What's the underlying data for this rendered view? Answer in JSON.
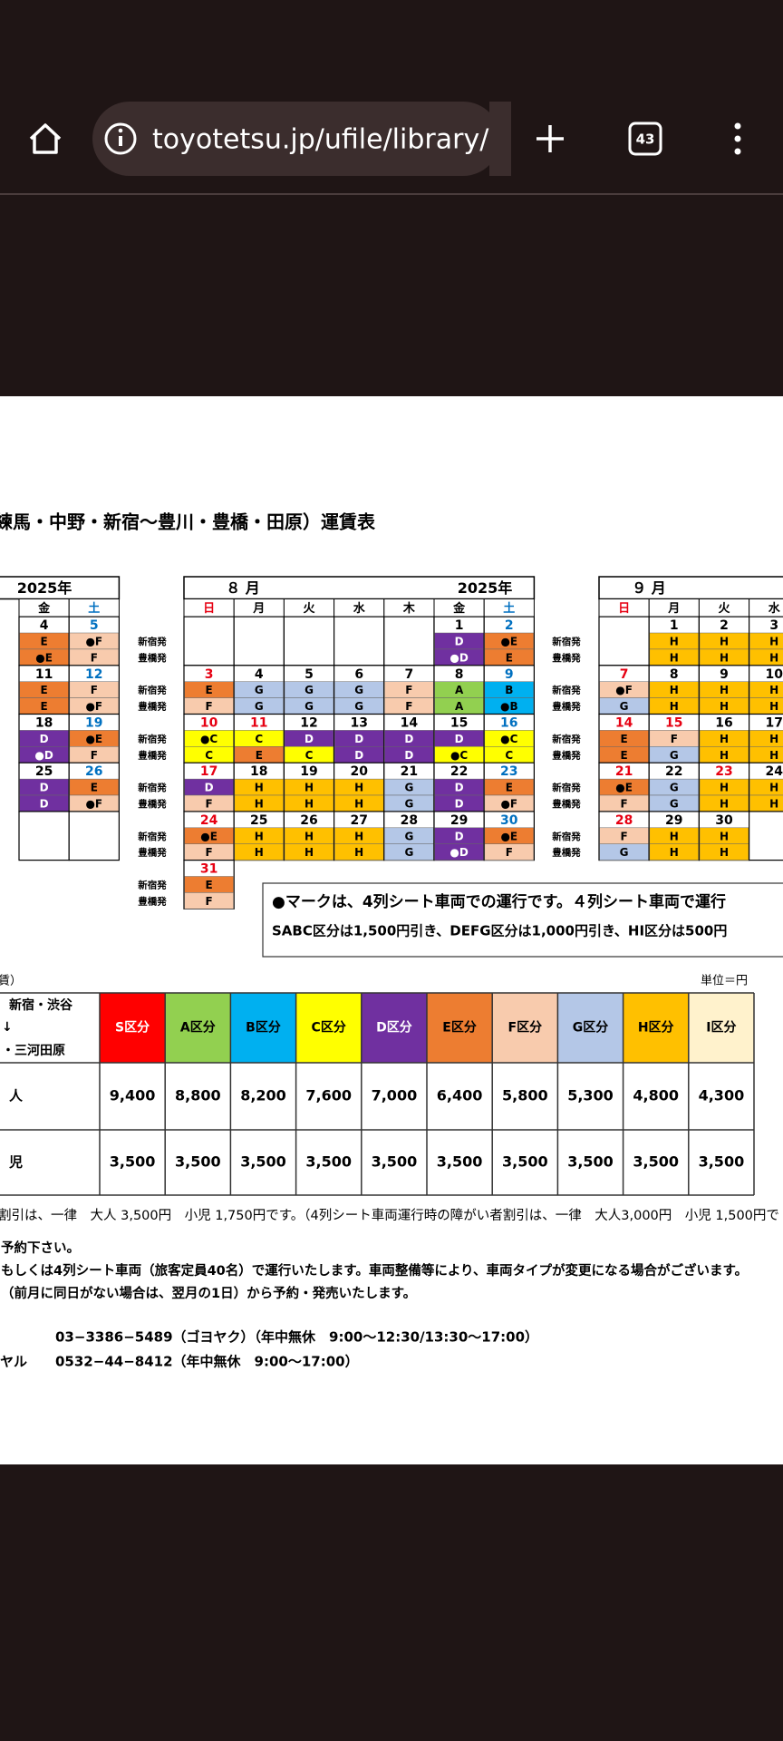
{
  "browser": {
    "url": "toyotetsu.jp/ufile/library/",
    "tab_count": "43"
  },
  "title": "練馬・中野・新宿〜豊川・豊橋・田原）運賃表",
  "row_labels": [
    "新宿発",
    "豊橋発"
  ],
  "calendars": [
    {
      "year": "2025年",
      "columns": [
        {
          "label": "金"
        },
        {
          "label": "土",
          "color": "#0070c0"
        }
      ],
      "weeks": [
        {
          "dates": [
            "4",
            "5"
          ],
          "shinjuku": [
            "E",
            "●F"
          ],
          "toyohashi": [
            "●E",
            "F"
          ]
        },
        {
          "dates": [
            "11",
            "12"
          ],
          "shinjuku": [
            "E",
            "F"
          ],
          "toyohashi": [
            "E",
            "●F"
          ]
        },
        {
          "dates": [
            "18",
            "19"
          ],
          "shinjuku": [
            "D",
            "●E"
          ],
          "toyohashi": [
            "●D",
            "F"
          ]
        },
        {
          "dates": [
            "25",
            "26"
          ],
          "shinjuku": [
            "D",
            "E"
          ],
          "toyohashi": [
            "D",
            "●F"
          ]
        },
        {
          "dates": [
            null,
            null
          ],
          "shinjuku": [
            null,
            null
          ],
          "toyohashi": [
            null,
            null
          ]
        }
      ]
    },
    {
      "month": "８ 月",
      "year": "2025年",
      "columns": [
        {
          "label": "日",
          "color": "#e60012"
        },
        {
          "label": "月"
        },
        {
          "label": "火"
        },
        {
          "label": "水"
        },
        {
          "label": "木"
        },
        {
          "label": "金"
        },
        {
          "label": "土",
          "color": "#0070c0"
        }
      ],
      "weeks": [
        {
          "dates": [
            null,
            null,
            null,
            null,
            null,
            "1",
            "2"
          ],
          "shinjuku": [
            null,
            null,
            null,
            null,
            null,
            "D",
            "●E"
          ],
          "toyohashi": [
            null,
            null,
            null,
            null,
            null,
            "●D",
            "E"
          ]
        },
        {
          "dates": [
            "3",
            "4",
            "5",
            "6",
            "7",
            "8",
            "9"
          ],
          "shinjuku": [
            "E",
            "G",
            "G",
            "G",
            "F",
            "A",
            "B"
          ],
          "toyohashi": [
            "F",
            "G",
            "G",
            "G",
            "F",
            "A",
            "●B"
          ]
        },
        {
          "dates": [
            "10",
            {
              "label": "11",
              "color": "#e60012"
            },
            "12",
            "13",
            "14",
            "15",
            "16"
          ],
          "shinjuku": [
            "●C",
            "C",
            "D",
            "D",
            "D",
            "D",
            "●C"
          ],
          "toyohashi": [
            "C",
            "E",
            "C",
            "D",
            "D",
            "●C",
            "C"
          ]
        },
        {
          "dates": [
            "17",
            "18",
            "19",
            "20",
            "21",
            "22",
            "23"
          ],
          "shinjuku": [
            "D",
            "H",
            "H",
            "H",
            "G",
            "D",
            "E"
          ],
          "toyohashi": [
            "F",
            "H",
            "H",
            "H",
            "G",
            "D",
            "●F"
          ]
        },
        {
          "dates": [
            "24",
            "25",
            "26",
            "27",
            "28",
            "29",
            "30"
          ],
          "shinjuku": [
            "●E",
            "H",
            "H",
            "H",
            "G",
            "D",
            "●E"
          ],
          "toyohashi": [
            "F",
            "H",
            "H",
            "H",
            "G",
            "●D",
            "F"
          ]
        },
        {
          "dates": [
            "31"
          ],
          "shinjuku": [
            "E"
          ],
          "toyohashi": [
            "F"
          ]
        }
      ]
    },
    {
      "month": "９ 月",
      "columns": [
        {
          "label": "日",
          "color": "#e60012"
        },
        {
          "label": "月"
        },
        {
          "label": "火"
        },
        {
          "label": "水"
        }
      ],
      "weeks": [
        {
          "dates": [
            null,
            "1",
            "2",
            "3"
          ],
          "shinjuku": [
            null,
            "H",
            "H",
            "H"
          ],
          "toyohashi": [
            null,
            "H",
            "H",
            "H"
          ]
        },
        {
          "dates": [
            "7",
            "8",
            "9",
            "10"
          ],
          "shinjuku": [
            "●F",
            "H",
            "H",
            "H"
          ],
          "toyohashi": [
            "G",
            "H",
            "H",
            "H"
          ]
        },
        {
          "dates": [
            "14",
            {
              "label": "15",
              "color": "#e60012"
            },
            "16",
            "17"
          ],
          "shinjuku": [
            "E",
            "F",
            "H",
            "H"
          ],
          "toyohashi": [
            "E",
            "G",
            "H",
            "H"
          ]
        },
        {
          "dates": [
            "21",
            "22",
            {
              "label": "23",
              "color": "#e60012"
            },
            "24"
          ],
          "shinjuku": [
            "●E",
            "G",
            "H",
            "H"
          ],
          "toyohashi": [
            "F",
            "G",
            "H",
            "H"
          ]
        },
        {
          "dates": [
            "28",
            "29",
            "30",
            null
          ],
          "shinjuku": [
            "F",
            "H",
            "H",
            null
          ],
          "toyohashi": [
            "G",
            "H",
            "H",
            null
          ]
        }
      ]
    }
  ],
  "note": [
    "●マークは、4列シート車両での運行です。４列シート車両で運行",
    "SABC区分は1,500円引き、DEFG区分は1,000円引き、HI区分は500円"
  ],
  "fare_table": {
    "section": "賃）",
    "unit": "単位＝円",
    "corner": [
      "新宿・渋谷",
      "↓",
      "・三河田原"
    ],
    "classes": [
      {
        "label": "S区分",
        "color": "#ff0000",
        "text_color": "#ffffff"
      },
      {
        "label": "A区分",
        "color": "#92d050",
        "text_color": "#000000"
      },
      {
        "label": "B区分",
        "color": "#00b0f0",
        "text_color": "#000000"
      },
      {
        "label": "C区分",
        "color": "#ffff00",
        "text_color": "#000000"
      },
      {
        "label": "D区分",
        "color": "#7030a0",
        "text_color": "#ffffff"
      },
      {
        "label": "E区分",
        "color": "#ed7d31",
        "text_color": "#000000"
      },
      {
        "label": "F区分",
        "color": "#f8cbad",
        "text_color": "#000000"
      },
      {
        "label": "G区分",
        "color": "#b4c7e7",
        "text_color": "#000000"
      },
      {
        "label": "H区分",
        "color": "#ffc000",
        "text_color": "#000000"
      },
      {
        "label": "I区分",
        "color": "#fff2cc",
        "text_color": "#000000"
      }
    ],
    "rows": [
      {
        "label": "人",
        "values": [
          "9,400",
          "8,800",
          "8,200",
          "7,600",
          "7,000",
          "6,400",
          "5,800",
          "5,300",
          "4,800",
          "4,300"
        ]
      },
      {
        "label": "児",
        "values": [
          "3,500",
          "3,500",
          "3,500",
          "3,500",
          "3,500",
          "3,500",
          "3,500",
          "3,500",
          "3,500",
          "3,500"
        ]
      }
    ]
  },
  "footer": {
    "lines": [
      "割引は、一律　大人 3,500円　小児 1,750円です。（4列シート車両運行時の障がい者割引は、一律　大人3,000円　小児 1,500円で",
      "予約下さい。",
      "もしくは4列シート車両（旅客定員40名）で運行いたします。車両整備等により、車両タイプが変更になる場合がございます。",
      "（前月に同日がない場合は、翌月の1日）から予約・発売いたします。"
    ],
    "contacts": [
      {
        "number": "03−3386−5489（ゴヨヤク）（年中無休　9:00〜12:30/13:30〜17:00）"
      },
      {
        "label": "ヤル",
        "number": "0532−44−8412（年中無休　9:00〜17:00）"
      }
    ]
  }
}
